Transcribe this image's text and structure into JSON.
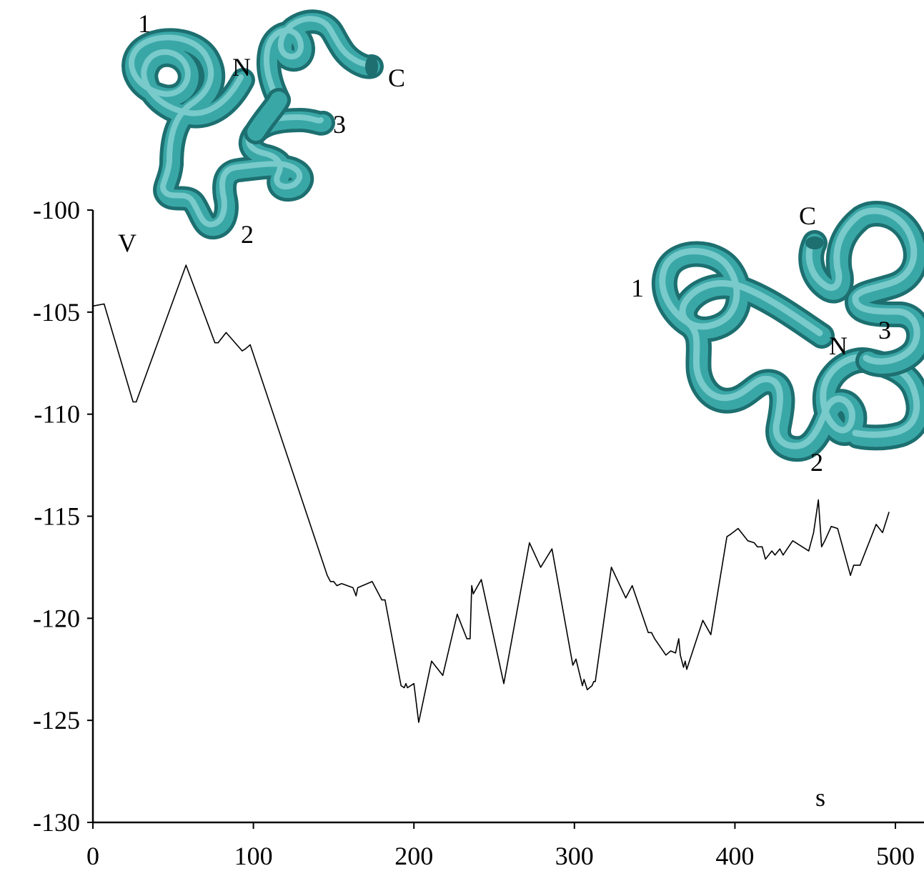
{
  "chart_data": {
    "type": "line",
    "title": "",
    "xlabel": "s",
    "ylabel": "V",
    "xlim": [
      0,
      520
    ],
    "ylim": [
      -130,
      -100
    ],
    "x_ticks": [
      0,
      100,
      200,
      300,
      400,
      500
    ],
    "y_ticks": [
      -100,
      -105,
      -110,
      -115,
      -120,
      -125,
      -130
    ],
    "grid": false,
    "legend": "none",
    "series": [
      {
        "color": "#000000",
        "points": [
          [
            0,
            -104.7
          ],
          [
            7,
            -104.6
          ],
          [
            25,
            -109.4
          ],
          [
            27,
            -109.4
          ],
          [
            58,
            -102.7
          ],
          [
            76,
            -106.5
          ],
          [
            78,
            -106.5
          ],
          [
            83,
            -106.0
          ],
          [
            93,
            -106.9
          ],
          [
            95,
            -106.8
          ],
          [
            98,
            -106.6
          ],
          [
            146,
            -117.9
          ],
          [
            148,
            -118.2
          ],
          [
            150,
            -118.2
          ],
          [
            152,
            -118.4
          ],
          [
            155,
            -118.3
          ],
          [
            162,
            -118.5
          ],
          [
            164,
            -118.9
          ],
          [
            165,
            -118.5
          ],
          [
            174,
            -118.2
          ],
          [
            180,
            -119.1
          ],
          [
            182,
            -119.1
          ],
          [
            192,
            -123.3
          ],
          [
            194,
            -123.4
          ],
          [
            195,
            -123.2
          ],
          [
            196,
            -123.4
          ],
          [
            200,
            -123.2
          ],
          [
            203,
            -125.1
          ],
          [
            211,
            -122.1
          ],
          [
            218,
            -122.8
          ],
          [
            227,
            -119.8
          ],
          [
            233,
            -121.0
          ],
          [
            235,
            -121.0
          ],
          [
            236,
            -118.4
          ],
          [
            237,
            -118.8
          ],
          [
            242,
            -118.1
          ],
          [
            256,
            -123.2
          ],
          [
            272,
            -116.3
          ],
          [
            279,
            -117.5
          ],
          [
            286,
            -116.6
          ],
          [
            299,
            -122.3
          ],
          [
            301,
            -122.0
          ],
          [
            305,
            -123.3
          ],
          [
            306,
            -123.0
          ],
          [
            308,
            -123.5
          ],
          [
            311,
            -123.3
          ],
          [
            312,
            -123.1
          ],
          [
            313,
            -123.1
          ],
          [
            323,
            -117.5
          ],
          [
            332,
            -119.0
          ],
          [
            336,
            -118.4
          ],
          [
            346,
            -120.7
          ],
          [
            348,
            -120.7
          ],
          [
            350,
            -121.0
          ],
          [
            357,
            -121.8
          ],
          [
            360,
            -121.6
          ],
          [
            363,
            -121.7
          ],
          [
            365,
            -121.0
          ],
          [
            366,
            -121.8
          ],
          [
            368,
            -122.4
          ],
          [
            369,
            -122.1
          ],
          [
            370,
            -122.5
          ],
          [
            380,
            -120.1
          ],
          [
            385,
            -120.8
          ],
          [
            395,
            -116.0
          ],
          [
            397,
            -115.9
          ],
          [
            402,
            -115.6
          ],
          [
            408,
            -116.2
          ],
          [
            412,
            -116.3
          ],
          [
            414,
            -116.5
          ],
          [
            417,
            -116.5
          ],
          [
            419,
            -117.1
          ],
          [
            423,
            -116.7
          ],
          [
            425,
            -116.9
          ],
          [
            428,
            -116.6
          ],
          [
            430,
            -116.9
          ],
          [
            436,
            -116.2
          ],
          [
            446,
            -116.7
          ],
          [
            449,
            -115.8
          ],
          [
            452,
            -114.2
          ],
          [
            454,
            -116.5
          ],
          [
            456,
            -116.2
          ],
          [
            460,
            -115.5
          ],
          [
            464,
            -115.6
          ],
          [
            472,
            -117.9
          ],
          [
            474,
            -117.4
          ],
          [
            478,
            -117.4
          ],
          [
            488,
            -115.4
          ],
          [
            492,
            -115.8
          ],
          [
            496,
            -114.8
          ]
        ]
      }
    ]
  },
  "annotations": {
    "mol1": {
      "n": "N",
      "c": "C",
      "h1": "1",
      "h2": "2",
      "h3": "3"
    },
    "mol2": {
      "n": "N",
      "c": "C",
      "h1": "1",
      "h2": "2",
      "h3": "3"
    }
  },
  "colors": {
    "tube": "#3aa7a7",
    "tube_light": "#8fd6d6",
    "tube_dark": "#1d6f70",
    "line": "#000000"
  }
}
